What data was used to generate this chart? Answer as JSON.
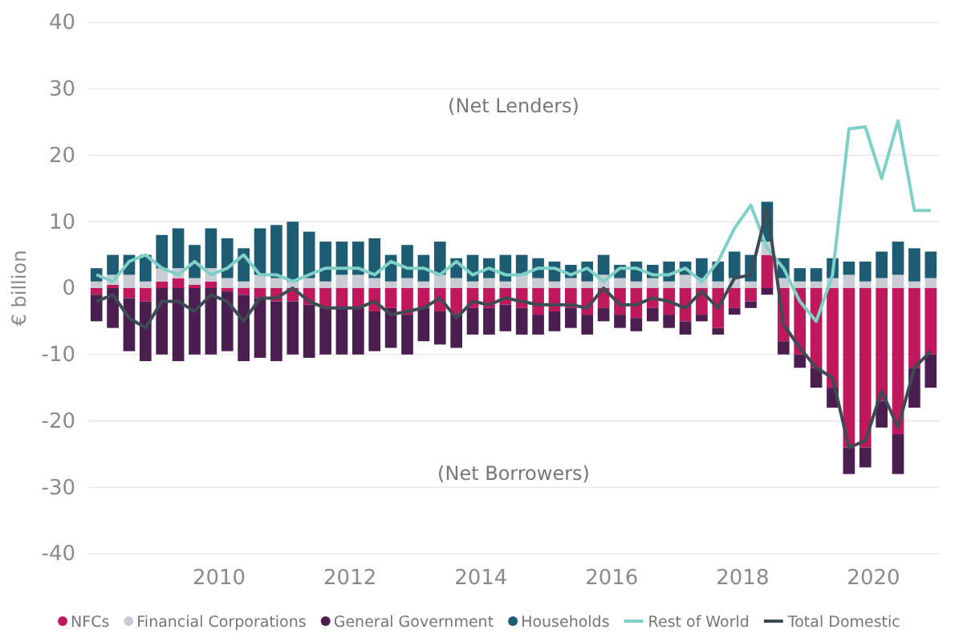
{
  "chart_data": {
    "type": "bar",
    "stacked": true,
    "ylabel": "€ billion",
    "annotations": [
      "(Net Lenders)",
      "(Net Borrowers)"
    ],
    "x": [
      2008.125,
      2008.375,
      2008.625,
      2008.875,
      2009.125,
      2009.375,
      2009.625,
      2009.875,
      2010.125,
      2010.375,
      2010.625,
      2010.875,
      2011.125,
      2011.375,
      2011.625,
      2011.875,
      2012.125,
      2012.375,
      2012.625,
      2012.875,
      2013.125,
      2013.375,
      2013.625,
      2013.875,
      2014.125,
      2014.375,
      2014.625,
      2014.875,
      2015.125,
      2015.375,
      2015.625,
      2015.875,
      2016.125,
      2016.375,
      2016.625,
      2016.875,
      2017.125,
      2017.375,
      2017.625,
      2017.875,
      2018.125,
      2018.375,
      2018.625,
      2018.875,
      2019.125,
      2019.375,
      2019.625,
      2019.875,
      2020.125,
      2020.375,
      2020.625,
      2020.875
    ],
    "xlim": [
      2008,
      2021
    ],
    "xticks": [
      2010,
      2012,
      2014,
      2016,
      2018,
      2020
    ],
    "ylim": [
      -40,
      40
    ],
    "yticks": [
      -40,
      -30,
      -20,
      -10,
      0,
      10,
      20,
      30,
      40
    ],
    "grid": "y",
    "legend": "bottom",
    "series": [
      {
        "name": "NFCs",
        "color": "#c0185c",
        "values": [
          -1,
          0.5,
          -1.5,
          -2,
          1,
          1.5,
          0.5,
          1,
          -0.5,
          -1,
          -1.5,
          -2,
          -2,
          -2.5,
          -3,
          -3,
          -3,
          -3.5,
          -3,
          -4,
          -3,
          -3.5,
          -4,
          -3,
          -3,
          -2.5,
          -3,
          -4,
          -3.5,
          -3,
          -4,
          -3,
          -4,
          -4.5,
          -3,
          -4,
          -5,
          -4,
          -6,
          -3,
          -2,
          5,
          -8,
          -10,
          -12,
          -15,
          -24,
          -24,
          -17,
          -22,
          -12,
          -10
        ]
      },
      {
        "name": "Financial Corporations",
        "color": "#c9ccd4",
        "values": [
          1,
          1.5,
          2,
          1,
          2,
          1.5,
          1,
          2,
          1.5,
          1,
          2,
          1.5,
          1,
          1.5,
          1,
          2,
          2,
          1.5,
          1,
          1.5,
          1,
          2,
          1.5,
          1,
          1.5,
          1,
          2,
          1.5,
          1,
          1.5,
          1,
          2,
          1.5,
          1,
          1.5,
          1,
          2,
          1.5,
          1,
          1.5,
          1,
          2,
          1.5,
          1,
          1,
          1.5,
          2,
          1,
          1.5,
          2,
          1,
          1.5
        ]
      },
      {
        "name": "General Government",
        "color": "#4a1f4f",
        "values": [
          -4,
          -6,
          -8,
          -9,
          -10,
          -11,
          -10,
          -10,
          -9,
          -10,
          -9,
          -9,
          -8,
          -8,
          -7,
          -7,
          -7,
          -6,
          -6,
          -6,
          -5,
          -5,
          -5,
          -4,
          -4,
          -4,
          -4,
          -3,
          -3,
          -3,
          -3,
          -2,
          -2,
          -2,
          -2,
          -2,
          -2,
          -1,
          -1,
          -1,
          -1,
          -1,
          -2,
          -2,
          -3,
          -3,
          -4,
          -3,
          -4,
          -6,
          -6,
          -5
        ]
      },
      {
        "name": "Households",
        "color": "#1e5c74",
        "values": [
          2,
          3,
          3,
          4,
          5,
          6,
          5,
          6,
          6,
          5,
          7,
          8,
          9,
          7,
          6,
          5,
          5,
          6,
          4,
          5,
          4,
          5,
          3,
          4,
          3,
          4,
          3,
          3,
          3,
          2,
          3,
          3,
          2,
          3,
          2,
          3,
          2,
          3,
          3,
          4,
          4,
          6,
          3,
          2,
          2,
          3,
          2,
          3,
          4,
          5,
          5,
          4
        ]
      },
      {
        "name": "Rest of World",
        "type": "line",
        "color": "#7fd1c8",
        "values": [
          2,
          1,
          4,
          5,
          3,
          2,
          4,
          2,
          3,
          5,
          2,
          2,
          1,
          2,
          3,
          3,
          3,
          2,
          4,
          3,
          3,
          2,
          4,
          2,
          3,
          2,
          2,
          3,
          3,
          2,
          3,
          1,
          3,
          3,
          2,
          2,
          3,
          1,
          4,
          9,
          12.5,
          6,
          3,
          -2,
          -5,
          2,
          24,
          24.3,
          16.5,
          25.2,
          11.7,
          11.7
        ]
      },
      {
        "name": "Total Domestic",
        "type": "line",
        "color": "#3d4b55",
        "values": [
          -2,
          -1,
          -4.5,
          -6,
          -2,
          -2,
          -3.5,
          -1,
          -2,
          -5,
          -1.5,
          -1.5,
          0,
          -2,
          -3,
          -3,
          -3,
          -2,
          -4,
          -3.5,
          -3,
          -1.5,
          -4.5,
          -2,
          -2.5,
          -1.5,
          -2,
          -2.5,
          -2.5,
          -2.5,
          -3,
          0,
          -2.5,
          -2.5,
          -1.5,
          -2,
          -3,
          -0.5,
          -3,
          1.5,
          2,
          12,
          -5.5,
          -9,
          -12,
          -13.5,
          -24,
          -23,
          -15.5,
          -21,
          -12,
          -9.5
        ]
      }
    ]
  }
}
